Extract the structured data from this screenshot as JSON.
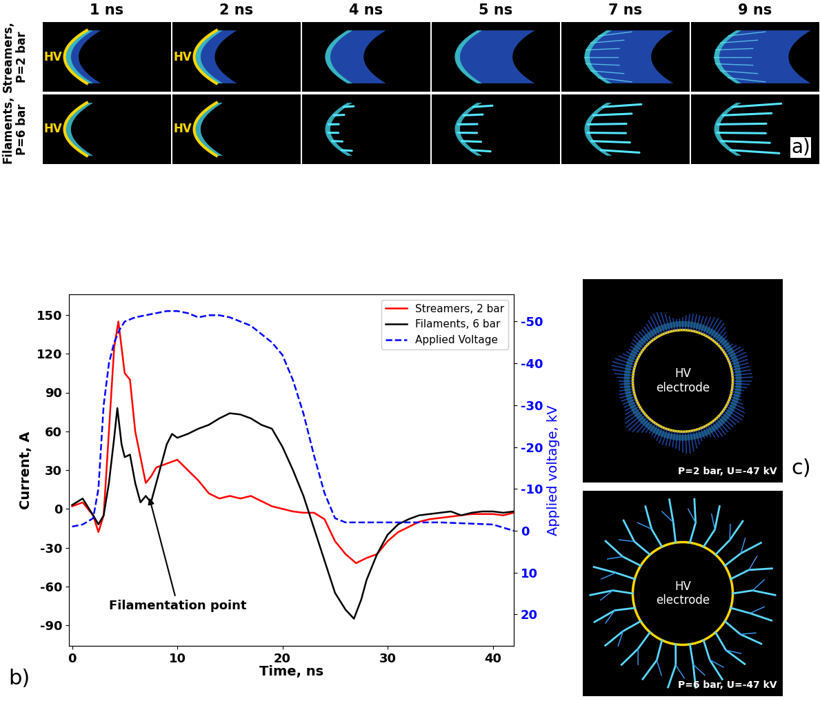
{
  "panel_a": {
    "label": "a)",
    "columns": [
      "1 ns",
      "2 ns",
      "4 ns",
      "5 ns",
      "7 ns",
      "9 ns"
    ],
    "rows": [
      {
        "label_lines": [
          "Streamers,",
          "P=2 bar"
        ],
        "kind": "streamers"
      },
      {
        "label_lines": [
          "Filaments,",
          "P=6 bar"
        ],
        "kind": "filaments"
      }
    ],
    "electrode_label": "HV"
  },
  "chart_data": {
    "type": "line",
    "panel_label": "b)",
    "xlabel": "Time, ns",
    "ylabel": "Current, A",
    "y2label": "Applied voltage, kV",
    "xlim": [
      -0.3,
      42
    ],
    "xticks": [
      0,
      10,
      20,
      30,
      40
    ],
    "ylim": [
      -106,
      166
    ],
    "yticks": [
      -90,
      -60,
      -30,
      0,
      30,
      60,
      90,
      120,
      150
    ],
    "y2lim": [
      27.5,
      -56.5
    ],
    "y2ticks": [
      -50,
      -40,
      -30,
      -20,
      -10,
      0,
      10,
      20
    ],
    "legend": "upper right",
    "annotations": [
      {
        "text": "Filamentation point",
        "x": 7.3,
        "y": 10
      }
    ],
    "series": [
      {
        "name": "Streamers, 2 bar",
        "color": "#ff0000",
        "line_style": "solid",
        "x": [
          0,
          1,
          2,
          2.5,
          3,
          3.5,
          4,
          4.4,
          5,
          5.5,
          6,
          6.5,
          7,
          7.5,
          8,
          9,
          10,
          11,
          12,
          13,
          14,
          15,
          16,
          17,
          18,
          19,
          20,
          21,
          22,
          23,
          24,
          25,
          26,
          27,
          28,
          29,
          30,
          31,
          32,
          33,
          34,
          35,
          36,
          37,
          38,
          39,
          40,
          41,
          42
        ],
        "values": [
          2,
          5,
          -5,
          -18,
          -5,
          60,
          125,
          145,
          105,
          100,
          60,
          40,
          20,
          25,
          32,
          35,
          38,
          30,
          22,
          12,
          8,
          10,
          8,
          10,
          6,
          2,
          0,
          -2,
          -3,
          -3,
          -8,
          -25,
          -35,
          -42,
          -38,
          -35,
          -25,
          -18,
          -14,
          -10,
          -8,
          -7,
          -6,
          -5,
          -4,
          -4,
          -4,
          -5,
          -3
        ]
      },
      {
        "name": "Filaments, 6 bar",
        "color": "#000000",
        "line_style": "solid",
        "x": [
          0,
          1,
          2,
          2.5,
          3,
          3.5,
          4,
          4.3,
          4.7,
          5,
          5.5,
          6,
          6.5,
          7,
          7.5,
          8,
          9,
          9.5,
          10,
          11,
          12,
          13,
          14,
          15,
          16,
          17,
          18,
          19,
          20,
          21,
          22,
          23,
          24,
          25,
          26,
          26.8,
          27.5,
          28,
          29,
          30,
          31,
          32,
          33,
          34,
          35,
          36,
          37,
          38,
          39,
          40,
          41,
          42
        ],
        "values": [
          3,
          8,
          -5,
          -12,
          -5,
          20,
          55,
          78,
          50,
          40,
          42,
          20,
          5,
          10,
          5,
          20,
          50,
          58,
          55,
          58,
          62,
          65,
          70,
          74,
          73,
          70,
          65,
          62,
          48,
          30,
          10,
          -15,
          -40,
          -65,
          -78,
          -85,
          -70,
          -55,
          -35,
          -20,
          -12,
          -8,
          -5,
          -4,
          -3,
          -2,
          -5,
          -3,
          -2,
          -2,
          -3,
          -2
        ]
      },
      {
        "name": "Applied Voltage",
        "color": "#0000ff",
        "line_style": "dashed",
        "axis": "y2",
        "x": [
          0,
          1,
          2,
          2.5,
          3,
          3.5,
          4,
          4.5,
          5,
          6,
          7,
          8,
          9,
          10,
          11,
          12,
          13,
          14,
          15,
          16,
          17,
          18,
          19,
          20,
          21,
          22,
          23,
          24,
          25,
          26,
          27,
          28,
          30,
          32,
          35,
          40,
          42
        ],
        "values": [
          -1,
          -1.5,
          -3,
          -10,
          -30,
          -40,
          -45,
          -48,
          -50,
          -51,
          -51.5,
          -52,
          -52.5,
          -52.5,
          -52,
          -51,
          -51.5,
          -51.5,
          -51,
          -50,
          -49,
          -47,
          -45,
          -42,
          -36,
          -28,
          -18,
          -9,
          -3,
          -2,
          -2,
          -2,
          -2,
          -2,
          -2,
          -1.5,
          0
        ]
      }
    ]
  },
  "panel_c": {
    "label": "c)",
    "electrode_label_lines": [
      "HV",
      "electrode"
    ],
    "images": [
      {
        "caption": "P=2 bar, U=-47 kV",
        "kind": "streamers"
      },
      {
        "caption": "P=6 bar, U=-47 kV",
        "kind": "filaments"
      }
    ]
  }
}
